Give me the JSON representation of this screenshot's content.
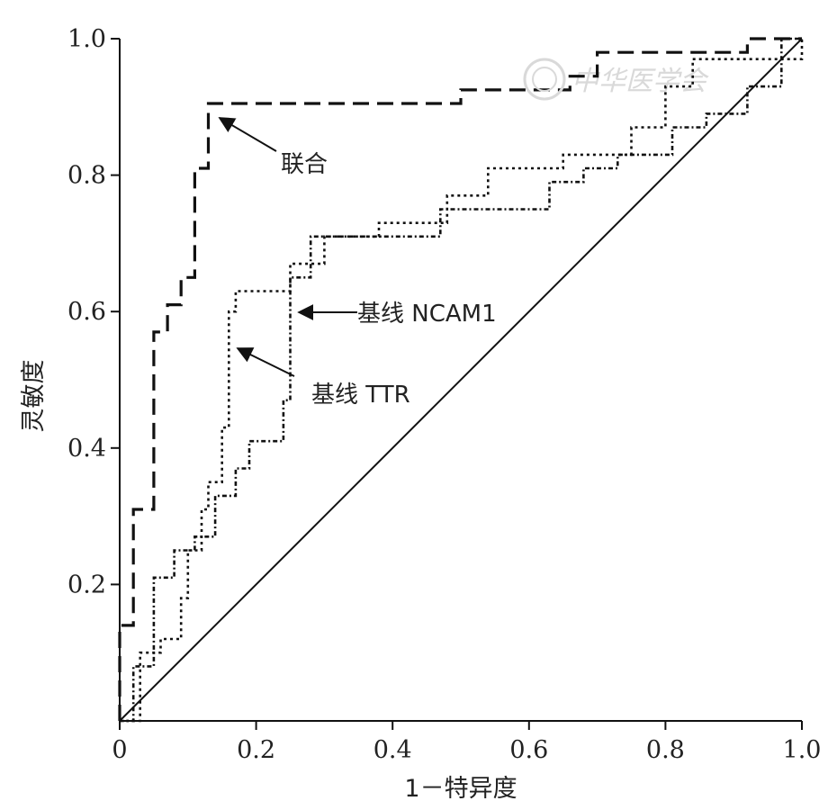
{
  "chart_data": {
    "type": "line",
    "xlabel": "1－特异度",
    "ylabel": "灵敏度",
    "xlim": [
      0,
      1
    ],
    "ylim": [
      0,
      1
    ],
    "x_ticks": [
      "0",
      "0.2",
      "0.4",
      "0.6",
      "0.8",
      "1.0"
    ],
    "y_ticks": [
      "0.2",
      "0.4",
      "0.6",
      "0.8",
      "1.0"
    ],
    "grid": false,
    "watermark": "中华医学会",
    "series": [
      {
        "name": "联合",
        "style": "dashed",
        "points": [
          [
            0,
            0
          ],
          [
            0,
            0.14
          ],
          [
            0.02,
            0.14
          ],
          [
            0.02,
            0.31
          ],
          [
            0.05,
            0.31
          ],
          [
            0.05,
            0.57
          ],
          [
            0.07,
            0.57
          ],
          [
            0.07,
            0.61
          ],
          [
            0.09,
            0.61
          ],
          [
            0.09,
            0.65
          ],
          [
            0.11,
            0.65
          ],
          [
            0.11,
            0.81
          ],
          [
            0.13,
            0.81
          ],
          [
            0.13,
            0.905
          ],
          [
            0.5,
            0.905
          ],
          [
            0.5,
            0.925
          ],
          [
            0.66,
            0.925
          ],
          [
            0.66,
            0.945
          ],
          [
            0.7,
            0.945
          ],
          [
            0.7,
            0.98
          ],
          [
            0.92,
            0.98
          ],
          [
            0.92,
            1.0
          ],
          [
            1.0,
            1.0
          ]
        ]
      },
      {
        "name": "基线 NCAM1",
        "style": "dash-dot",
        "points": [
          [
            0,
            0
          ],
          [
            0.02,
            0
          ],
          [
            0.02,
            0.08
          ],
          [
            0.05,
            0.08
          ],
          [
            0.05,
            0.21
          ],
          [
            0.08,
            0.21
          ],
          [
            0.08,
            0.25
          ],
          [
            0.11,
            0.25
          ],
          [
            0.11,
            0.27
          ],
          [
            0.14,
            0.27
          ],
          [
            0.14,
            0.33
          ],
          [
            0.17,
            0.33
          ],
          [
            0.17,
            0.37
          ],
          [
            0.19,
            0.37
          ],
          [
            0.19,
            0.41
          ],
          [
            0.24,
            0.41
          ],
          [
            0.24,
            0.47
          ],
          [
            0.25,
            0.47
          ],
          [
            0.25,
            0.65
          ],
          [
            0.28,
            0.65
          ],
          [
            0.28,
            0.71
          ],
          [
            0.47,
            0.71
          ],
          [
            0.47,
            0.75
          ],
          [
            0.63,
            0.75
          ],
          [
            0.63,
            0.79
          ],
          [
            0.68,
            0.79
          ],
          [
            0.68,
            0.81
          ],
          [
            0.73,
            0.81
          ],
          [
            0.73,
            0.83
          ],
          [
            0.81,
            0.83
          ],
          [
            0.81,
            0.87
          ],
          [
            0.86,
            0.87
          ],
          [
            0.86,
            0.89
          ],
          [
            0.92,
            0.89
          ],
          [
            0.92,
            0.93
          ],
          [
            0.97,
            0.93
          ],
          [
            0.97,
            1.0
          ],
          [
            1.0,
            1.0
          ]
        ]
      },
      {
        "name": "基线 TTR",
        "style": "dotted",
        "points": [
          [
            0,
            0
          ],
          [
            0.03,
            0
          ],
          [
            0.03,
            0.1
          ],
          [
            0.06,
            0.1
          ],
          [
            0.06,
            0.12
          ],
          [
            0.09,
            0.12
          ],
          [
            0.09,
            0.18
          ],
          [
            0.1,
            0.18
          ],
          [
            0.1,
            0.25
          ],
          [
            0.12,
            0.25
          ],
          [
            0.12,
            0.31
          ],
          [
            0.13,
            0.31
          ],
          [
            0.13,
            0.35
          ],
          [
            0.15,
            0.35
          ],
          [
            0.15,
            0.43
          ],
          [
            0.16,
            0.43
          ],
          [
            0.16,
            0.6
          ],
          [
            0.17,
            0.6
          ],
          [
            0.17,
            0.63
          ],
          [
            0.25,
            0.63
          ],
          [
            0.25,
            0.67
          ],
          [
            0.3,
            0.67
          ],
          [
            0.3,
            0.71
          ],
          [
            0.38,
            0.71
          ],
          [
            0.38,
            0.73
          ],
          [
            0.48,
            0.73
          ],
          [
            0.48,
            0.77
          ],
          [
            0.54,
            0.77
          ],
          [
            0.54,
            0.81
          ],
          [
            0.65,
            0.81
          ],
          [
            0.65,
            0.83
          ],
          [
            0.75,
            0.83
          ],
          [
            0.75,
            0.87
          ],
          [
            0.8,
            0.87
          ],
          [
            0.8,
            0.93
          ],
          [
            0.84,
            0.93
          ],
          [
            0.84,
            0.97
          ],
          [
            1.0,
            0.97
          ],
          [
            1.0,
            1.0
          ]
        ]
      },
      {
        "name": "",
        "style": "solid",
        "points": [
          [
            0,
            0
          ],
          [
            1,
            1
          ]
        ]
      }
    ],
    "annotations": [
      {
        "text": "联合",
        "target_series": "联合"
      },
      {
        "text": "基线 NCAM1",
        "target_series": "基线 NCAM1"
      },
      {
        "text": "基线 TTR",
        "target_series": "基线 TTR"
      }
    ]
  }
}
